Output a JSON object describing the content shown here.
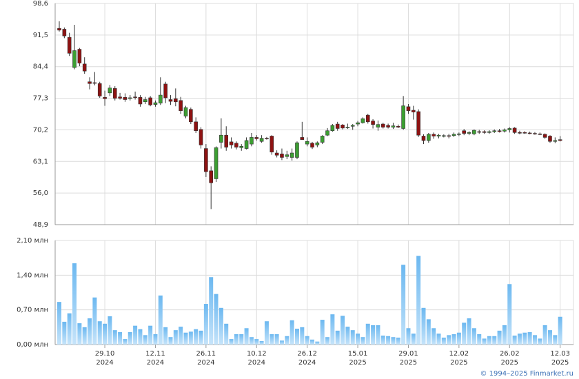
{
  "chart_data": [
    {
      "type": "candlestick",
      "categories": [
        null,
        null,
        null,
        null,
        null,
        null,
        null,
        null,
        null,
        "29.10",
        null,
        null,
        null,
        null,
        null,
        null,
        null,
        null,
        null,
        "12.11",
        null,
        null,
        null,
        null,
        null,
        null,
        null,
        null,
        null,
        "26.11",
        null,
        null,
        null,
        null,
        null,
        null,
        null,
        null,
        null,
        "10.12",
        null,
        null,
        null,
        null,
        null,
        null,
        null,
        null,
        null,
        "26.12",
        null,
        null,
        null,
        null,
        null,
        null,
        null,
        null,
        null,
        "15.01",
        null,
        null,
        null,
        null,
        null,
        null,
        null,
        null,
        null,
        "29.01",
        null,
        null,
        null,
        null,
        null,
        null,
        null,
        null,
        null,
        "12.02",
        null,
        null,
        null,
        null,
        null,
        null,
        null,
        null,
        null,
        "26.02",
        null,
        null,
        null,
        null,
        null,
        null,
        null,
        null,
        null,
        "12.03"
      ],
      "category_years": [
        null,
        null,
        null,
        null,
        null,
        null,
        null,
        null,
        null,
        "2024",
        null,
        null,
        null,
        null,
        null,
        null,
        null,
        null,
        null,
        "2024",
        null,
        null,
        null,
        null,
        null,
        null,
        null,
        null,
        null,
        "2024",
        null,
        null,
        null,
        null,
        null,
        null,
        null,
        null,
        null,
        "2024",
        null,
        null,
        null,
        null,
        null,
        null,
        null,
        null,
        null,
        "2024",
        null,
        null,
        null,
        null,
        null,
        null,
        null,
        null,
        null,
        "2025",
        null,
        null,
        null,
        null,
        null,
        null,
        null,
        null,
        null,
        "2025",
        null,
        null,
        null,
        null,
        null,
        null,
        null,
        null,
        null,
        "2025",
        null,
        null,
        null,
        null,
        null,
        null,
        null,
        null,
        null,
        "2025",
        null,
        null,
        null,
        null,
        null,
        null,
        null,
        null,
        null,
        "2025"
      ],
      "open": [
        93.0,
        92.8,
        91.0,
        84.2,
        88.3,
        85.0,
        81.0,
        80.8,
        80.6,
        77.5,
        78.5,
        79.5,
        77.6,
        77.5,
        77.3,
        77.6,
        77.5,
        76.5,
        77.4,
        75.9,
        76.2,
        80.5,
        77.0,
        77.2,
        76.8,
        73.3,
        74.8,
        72.0,
        70.3,
        66.0,
        61.0,
        59.2,
        67.4,
        69.0,
        67.5,
        67.2,
        66.2,
        66.0,
        67.0,
        68.5,
        67.6,
        68.3,
        68.8,
        65.0,
        64.8,
        64.2,
        64.0,
        64.0,
        68.5,
        67.0,
        67.2,
        66.8,
        67.4,
        69.0,
        70.0,
        71.5,
        71.3,
        70.8,
        71.0,
        71.5,
        71.8,
        73.5,
        72.2,
        70.8,
        71.5,
        71.2,
        70.8,
        71.0,
        70.5,
        75.4,
        74.6,
        74.3,
        68.8,
        67.8,
        69.2,
        68.8,
        68.8,
        68.9,
        68.9,
        69.2,
        70.0,
        69.4,
        69.3,
        69.8,
        69.8,
        69.6,
        69.8,
        70.0,
        69.9,
        70.2,
        70.6,
        69.6,
        69.6,
        69.5,
        69.4,
        69.3,
        69.2,
        68.8,
        67.6,
        68.0
      ],
      "high": [
        94.6,
        93.2,
        92.0,
        93.8,
        88.6,
        86.5,
        82.0,
        83.2,
        81.0,
        79.0,
        80.3,
        80.0,
        78.5,
        78.4,
        78.0,
        78.8,
        78.0,
        77.6,
        77.8,
        76.8,
        82.0,
        81.0,
        78.0,
        79.5,
        77.6,
        75.6,
        75.2,
        73.0,
        70.8,
        67.0,
        62.0,
        66.5,
        72.8,
        71.0,
        68.5,
        67.6,
        67.0,
        68.5,
        69.5,
        69.0,
        69.0,
        68.6,
        69.0,
        65.6,
        66.0,
        65.5,
        66.0,
        67.6,
        72.0,
        68.5,
        67.5,
        67.6,
        69.0,
        70.6,
        71.5,
        72.0,
        71.5,
        71.6,
        71.5,
        72.2,
        73.0,
        73.8,
        72.6,
        72.3,
        71.8,
        71.6,
        71.8,
        71.4,
        77.8,
        76.0,
        75.6,
        74.8,
        69.2,
        69.5,
        69.6,
        69.3,
        69.2,
        69.3,
        69.6,
        69.6,
        70.4,
        69.9,
        70.3,
        70.2,
        70.1,
        70.1,
        70.3,
        70.4,
        70.5,
        70.8,
        70.8,
        70.0,
        69.9,
        69.8,
        69.7,
        69.6,
        69.4,
        69.0,
        68.5,
        68.8
      ],
      "low": [
        92.3,
        90.8,
        86.8,
        83.8,
        84.5,
        82.8,
        79.3,
        80.2,
        77.4,
        75.6,
        77.8,
        76.8,
        77.0,
        76.5,
        76.8,
        77.0,
        75.4,
        76.0,
        75.5,
        75.4,
        75.8,
        76.2,
        75.8,
        75.5,
        73.8,
        72.8,
        71.5,
        69.5,
        66.0,
        59.6,
        52.4,
        58.5,
        66.0,
        65.5,
        66.0,
        65.8,
        65.5,
        65.8,
        66.5,
        67.8,
        67.3,
        68.0,
        64.6,
        64.0,
        63.4,
        63.6,
        63.3,
        63.6,
        68.0,
        66.5,
        65.9,
        66.3,
        67.0,
        68.8,
        69.8,
        70.0,
        70.3,
        70.4,
        70.2,
        71.0,
        71.6,
        71.6,
        70.5,
        70.0,
        70.5,
        70.5,
        70.4,
        70.6,
        70.2,
        73.8,
        72.5,
        68.6,
        67.0,
        67.3,
        68.2,
        68.3,
        68.5,
        68.3,
        68.6,
        68.8,
        69.0,
        69.0,
        69.0,
        69.3,
        69.3,
        69.3,
        69.5,
        69.6,
        69.6,
        69.6,
        69.3,
        69.2,
        69.3,
        69.2,
        69.1,
        69.0,
        68.2,
        67.3,
        67.2,
        67.6
      ],
      "close": [
        92.6,
        91.3,
        87.4,
        88.0,
        85.2,
        83.4,
        80.6,
        80.7,
        77.8,
        77.2,
        79.6,
        77.3,
        77.3,
        77.0,
        77.4,
        77.5,
        76.0,
        77.0,
        75.8,
        76.3,
        78.0,
        77.4,
        76.6,
        76.5,
        74.5,
        75.2,
        72.0,
        70.0,
        66.8,
        60.8,
        58.3,
        66.2,
        69.0,
        66.3,
        66.8,
        66.3,
        66.5,
        67.8,
        68.5,
        68.2,
        68.3,
        68.2,
        65.2,
        64.5,
        64.0,
        64.6,
        65.0,
        67.3,
        68.0,
        67.6,
        66.3,
        67.3,
        68.8,
        70.0,
        71.2,
        70.5,
        70.6,
        70.8,
        71.2,
        71.8,
        72.7,
        72.0,
        71.4,
        71.4,
        70.8,
        70.8,
        71.1,
        70.8,
        75.6,
        74.5,
        74.2,
        69.0,
        67.8,
        69.2,
        68.8,
        69.0,
        68.9,
        68.8,
        69.2,
        69.3,
        69.4,
        69.6,
        70.1,
        69.7,
        69.6,
        69.8,
        70.0,
        69.8,
        70.2,
        70.5,
        69.6,
        69.5,
        69.5,
        69.4,
        69.3,
        69.2,
        68.5,
        67.6,
        67.8,
        67.8
      ],
      "up_color": "#3c9e32",
      "down_color": "#8e1212",
      "ylim": [
        48.9,
        98.6
      ],
      "yticks": [
        {
          "value": 48.9,
          "label": "48,9"
        },
        {
          "value": 56.0,
          "label": "56,0"
        },
        {
          "value": 63.1,
          "label": "63,1"
        },
        {
          "value": 70.2,
          "label": "70,2"
        },
        {
          "value": 77.3,
          "label": "77,3"
        },
        {
          "value": 84.4,
          "label": "84,4"
        },
        {
          "value": 91.5,
          "label": "91,5"
        },
        {
          "value": 98.6,
          "label": "98,6"
        }
      ],
      "grid": true
    },
    {
      "type": "bar",
      "values": [
        0.86,
        0.46,
        0.63,
        1.64,
        0.43,
        0.35,
        0.53,
        0.95,
        0.47,
        0.42,
        0.57,
        0.29,
        0.25,
        0.11,
        0.25,
        0.38,
        0.31,
        0.19,
        0.38,
        0.21,
        0.99,
        0.35,
        0.15,
        0.29,
        0.36,
        0.24,
        0.26,
        0.31,
        0.28,
        0.82,
        1.36,
        1.02,
        0.74,
        0.42,
        0.11,
        0.21,
        0.21,
        0.33,
        0.15,
        0.11,
        0.07,
        0.47,
        0.21,
        0.21,
        0.08,
        0.17,
        0.49,
        0.32,
        0.35,
        0.17,
        0.1,
        0.06,
        0.5,
        0.15,
        0.61,
        0.28,
        0.58,
        0.36,
        0.29,
        0.22,
        0.15,
        0.42,
        0.39,
        0.39,
        0.18,
        0.17,
        0.15,
        0.14,
        1.61,
        0.33,
        0.22,
        1.79,
        0.74,
        0.51,
        0.33,
        0.22,
        0.14,
        0.19,
        0.21,
        0.24,
        0.44,
        0.53,
        0.33,
        0.21,
        0.12,
        0.17,
        0.17,
        0.28,
        0.39,
        1.22,
        0.18,
        0.22,
        0.24,
        0.25,
        0.19,
        0.12,
        0.39,
        0.29,
        0.19,
        0.56
      ],
      "color": "#7cc0f2",
      "ylim": [
        0,
        2.1
      ],
      "yticks": [
        {
          "value": 0,
          "label": "0,00 млн"
        },
        {
          "value": 0.7,
          "label": "0,70 млн"
        },
        {
          "value": 1.4,
          "label": "1,40 млн"
        },
        {
          "value": 2.1,
          "label": "2,10 млн"
        }
      ],
      "grid": true
    }
  ],
  "footer": "© 1994–2025 Finmarket.ru"
}
